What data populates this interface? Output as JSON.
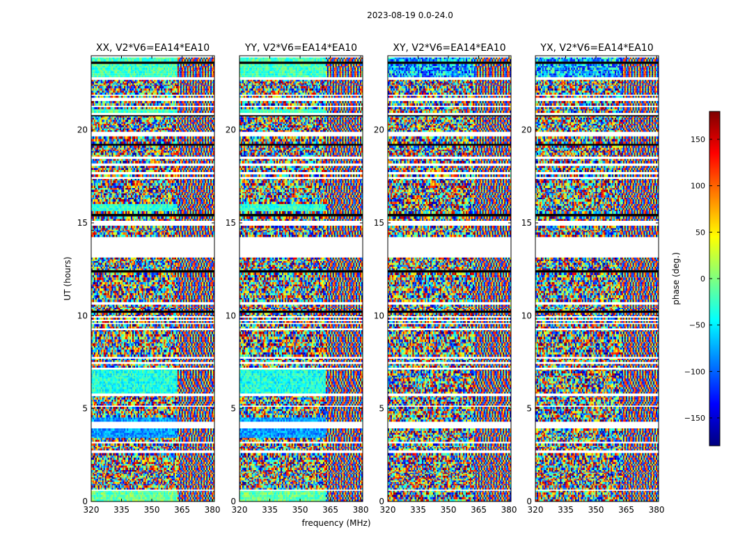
{
  "chart_data": {
    "type": "heatmap",
    "suptitle": "2023-08-19 0.0-24.0",
    "xlabel": "frequency (MHz)",
    "ylabel": "UT (hours)",
    "xlim": [
      320,
      381
    ],
    "ylim": [
      0,
      24
    ],
    "xticks": [
      320,
      335,
      350,
      365,
      380
    ],
    "yticks": [
      0,
      5,
      10,
      15,
      20
    ],
    "panels": [
      {
        "title": "XX, V2*V6=EA14*EA10",
        "pattern": "parallel"
      },
      {
        "title": "YY, V2*V6=EA14*EA10",
        "pattern": "parallel"
      },
      {
        "title": "XY, V2*V6=EA14*EA10",
        "pattern": "cross"
      },
      {
        "title": "YX, V2*V6=EA14*EA10",
        "pattern": "cross"
      }
    ],
    "colorbar": {
      "label": "phase (deg.)",
      "range": [
        -180,
        180
      ],
      "ticks": [
        -150,
        -100,
        -50,
        0,
        50,
        100,
        150
      ],
      "colormap": "jet",
      "colormap_stops": [
        "#00007f",
        "#0000ff",
        "#007fff",
        "#00ffff",
        "#7fff7f",
        "#ffff00",
        "#ff7f00",
        "#ff0000",
        "#7f0000"
      ]
    },
    "notes": "Noisy phase waterfall vs frequency and UT; horizontal white bands indicate flagged (no-data) time ranges, largest gap ~13.1-14.2 UT; coherent phase region at low frequencies in XX/YY near 3.5-4.5, 5.8-7.0 and 22.5-24 UT."
  }
}
